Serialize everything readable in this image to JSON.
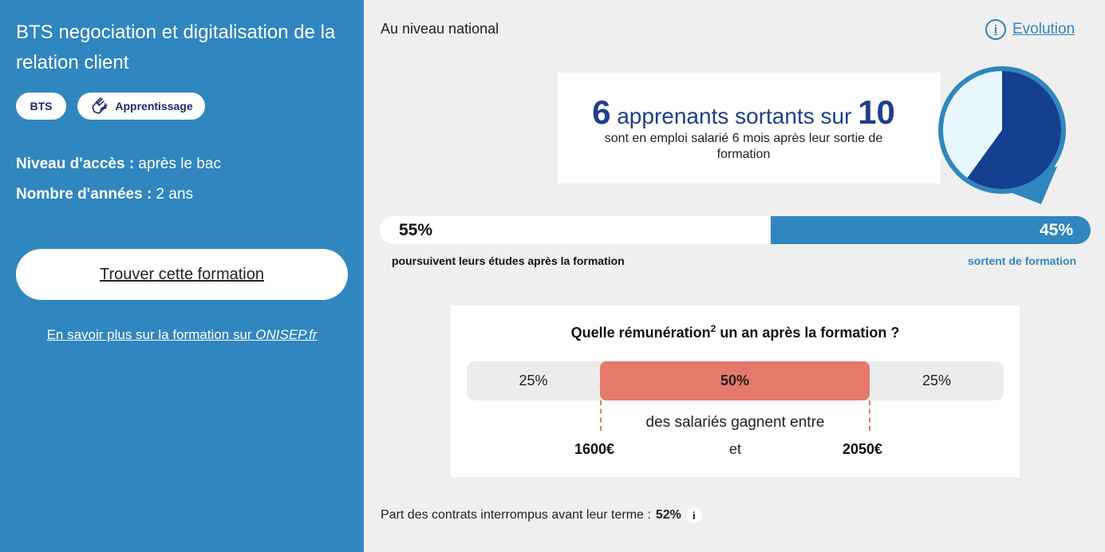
{
  "formation": {
    "title": "BTS negociation et digitalisation de la relation client",
    "tags": [
      "BTS",
      "Apprentissage"
    ],
    "niveau_label": "Niveau d'accès :",
    "niveau_value": " après le bac",
    "annees_label": "Nombre d'années :",
    "annees_value": " 2 ans",
    "find_button": "Trouver cette formation",
    "more_link_prefix": "En savoir plus sur la formation sur ",
    "more_link_site": "ONISEP.fr"
  },
  "national": {
    "heading": "Au niveau national",
    "evolution_label": "Evolution",
    "info_glyph": "i"
  },
  "emploi": {
    "count": "6",
    "text_mid": " apprenants sortants sur ",
    "total": "10",
    "subtitle": "sont en emploi salarié 6 mois après leur sortie de formation",
    "pie_fraction": 0.6,
    "colors": {
      "filled": "#153f91",
      "empty": "#e8f6fd",
      "ring": "#3086be"
    }
  },
  "poursuite": {
    "left_pct": "55%",
    "right_pct": "45%",
    "left_label": "poursuivent leurs études après la formation",
    "right_label": "sortent de formation",
    "left_fraction": 0.55
  },
  "remuneration": {
    "question_prefix": "Quelle rémunération",
    "question_sup": "2",
    "question_suffix": " un an après la formation ?",
    "segments": [
      "25%",
      "50%",
      "25%"
    ],
    "between_text": "des salariés gagnent entre",
    "min": "1600€",
    "and": "et",
    "max": "2050€",
    "accent": "#e5796b"
  },
  "contrats": {
    "label": "Part des contrats interrompus avant leur terme : ",
    "value": "52%",
    "info_glyph": "i"
  }
}
